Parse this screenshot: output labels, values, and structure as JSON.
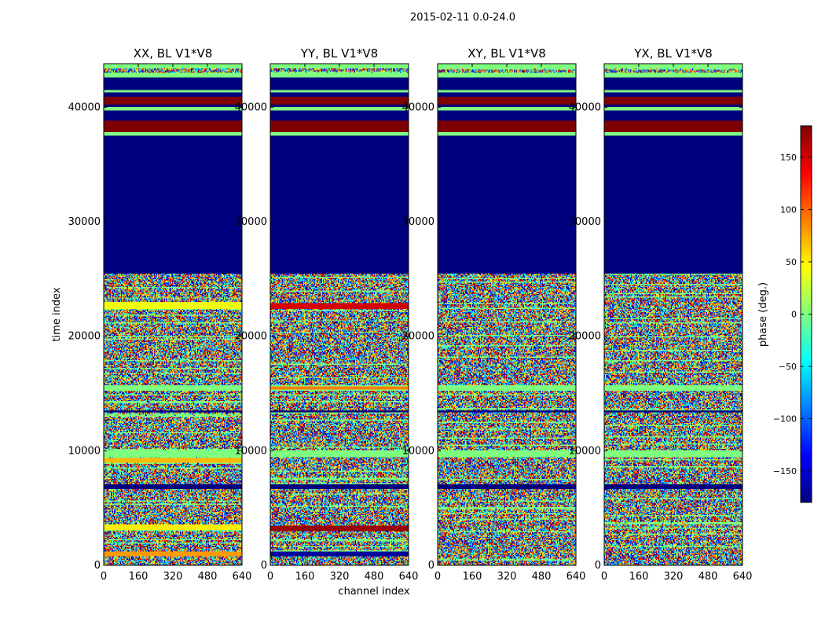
{
  "suptitle": "2015-02-11 0.0-24.0",
  "xlabel": "channel index",
  "ylabel": "time index",
  "colorbar": {
    "label": "phase (deg.)",
    "range": [
      -180,
      180
    ],
    "ticks": [
      -150,
      -100,
      -50,
      0,
      50,
      100,
      150
    ],
    "tick_labels": [
      "−150",
      "−100",
      "−50",
      "0",
      "50",
      "100",
      "150"
    ],
    "colors": [
      "#00007f",
      "#0000ff",
      "#007fff",
      "#00ffff",
      "#7fff7f",
      "#ffff00",
      "#ff7f00",
      "#ff0000",
      "#7f0000"
    ]
  },
  "chart_data": {
    "type": "heatmap",
    "panels": [
      {
        "name": "xx",
        "title": "XX, BL V1*V8"
      },
      {
        "name": "yy",
        "title": "YY, BL V1*V8"
      },
      {
        "name": "xy",
        "title": "XY, BL V1*V8"
      },
      {
        "name": "yx",
        "title": "YX, BL V1*V8"
      }
    ],
    "x_range": [
      0,
      640
    ],
    "x_ticks": [
      0,
      160,
      320,
      480,
      640
    ],
    "x_tick_labels": [
      "0",
      "160",
      "320",
      "480",
      "640"
    ],
    "y_range": [
      0,
      43800
    ],
    "y_ticks": [
      0,
      10000,
      20000,
      30000,
      40000
    ],
    "y_tick_labels": [
      "0",
      "10000",
      "20000",
      "30000",
      "40000"
    ],
    "value_unit": "phase (deg.)",
    "bands": [
      {
        "t0": 25500,
        "t1": 37500,
        "phase": -180
      },
      {
        "t0": 37500,
        "t1": 37800,
        "phase": 0
      },
      {
        "t0": 37800,
        "t1": 38800,
        "phase": 180
      },
      {
        "t0": 38800,
        "t1": 39700,
        "phase": -180
      },
      {
        "t0": 39700,
        "t1": 40000,
        "phase": 0
      },
      {
        "t0": 40000,
        "t1": 40200,
        "phase": -180
      },
      {
        "t0": 40200,
        "t1": 40900,
        "phase": 180
      },
      {
        "t0": 40900,
        "t1": 41300,
        "phase": -180
      },
      {
        "t0": 41300,
        "t1": 41500,
        "phase": 0
      },
      {
        "t0": 41500,
        "t1": 42600,
        "phase": -180
      },
      {
        "t0": 42600,
        "t1": 43000,
        "phase": 0
      },
      {
        "t0": 43400,
        "t1": 43800,
        "phase": 0
      },
      {
        "t0": 9500,
        "t1": 10100,
        "phase": 0
      },
      {
        "t0": 6700,
        "t1": 7100,
        "phase": -180
      },
      {
        "t0": 15200,
        "t1": 15700,
        "phase": 0
      },
      {
        "t0": 13300,
        "t1": 13500,
        "phase": -180
      }
    ],
    "panel_bands": {
      "xx": [
        {
          "t0": 22400,
          "t1": 23000,
          "phase": 40
        },
        {
          "t0": 9000,
          "t1": 9400,
          "phase": 70
        },
        {
          "t0": 3100,
          "t1": 3600,
          "phase": 50
        },
        {
          "t0": 800,
          "t1": 1200,
          "phase": 80
        }
      ],
      "yy": [
        {
          "t0": 22400,
          "t1": 22900,
          "phase": 150
        },
        {
          "t0": 15300,
          "t1": 15600,
          "phase": 90
        },
        {
          "t0": 3000,
          "t1": 3500,
          "phase": 170
        },
        {
          "t0": 800,
          "t1": 1200,
          "phase": -170
        }
      ],
      "xy": [],
      "yx": []
    },
    "noise": "random phase in all other rows below 25500"
  }
}
